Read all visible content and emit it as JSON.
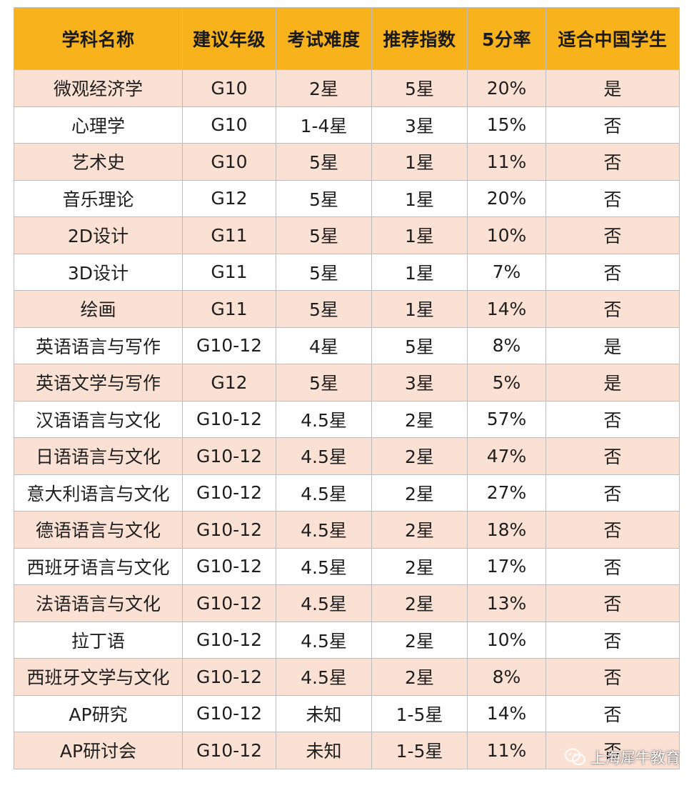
{
  "table": {
    "headers": [
      "学科名称",
      "建议年级",
      "考试难度",
      "推荐指数",
      "5分率",
      "适合中国学生"
    ],
    "rows": [
      [
        "微观经济学",
        "G10",
        "2星",
        "5星",
        "20%",
        "是"
      ],
      [
        "心理学",
        "G10",
        "1-4星",
        "3星",
        "15%",
        "否"
      ],
      [
        "艺术史",
        "G10",
        "5星",
        "1星",
        "11%",
        "否"
      ],
      [
        "音乐理论",
        "G12",
        "5星",
        "1星",
        "20%",
        "否"
      ],
      [
        "2D设计",
        "G11",
        "5星",
        "1星",
        "10%",
        "否"
      ],
      [
        "3D设计",
        "G11",
        "5星",
        "1星",
        "7%",
        "否"
      ],
      [
        "绘画",
        "G11",
        "5星",
        "1星",
        "14%",
        "否"
      ],
      [
        "英语语言与写作",
        "G10-12",
        "4星",
        "5星",
        "8%",
        "是"
      ],
      [
        "英语文学与写作",
        "G12",
        "5星",
        "3星",
        "5%",
        "是"
      ],
      [
        "汉语语言与文化",
        "G10-12",
        "4.5星",
        "2星",
        "57%",
        "否"
      ],
      [
        "日语语言与文化",
        "G10-12",
        "4.5星",
        "2星",
        "47%",
        "否"
      ],
      [
        "意大利语言与文化",
        "G10-12",
        "4.5星",
        "2星",
        "27%",
        "否"
      ],
      [
        "德语语言与文化",
        "G10-12",
        "4.5星",
        "2星",
        "18%",
        "否"
      ],
      [
        "西班牙语言与文化",
        "G10-12",
        "4.5星",
        "2星",
        "17%",
        "否"
      ],
      [
        "法语语言与文化",
        "G10-12",
        "4.5星",
        "2星",
        "13%",
        "否"
      ],
      [
        "拉丁语",
        "G10-12",
        "4.5星",
        "2星",
        "10%",
        "否"
      ],
      [
        "西班牙文学与文化",
        "G10-12",
        "4.5星",
        "2星",
        "8%",
        "否"
      ],
      [
        "AP研究",
        "G10-12",
        "未知",
        "1-5星",
        "14%",
        "否"
      ],
      [
        "AP研讨会",
        "G10-12",
        "未知",
        "1-5星",
        "11%",
        "否"
      ]
    ]
  },
  "watermark": {
    "text": "上海犀牛教育",
    "icon": "wechat-icon"
  },
  "colors": {
    "header_bg": "#f7b21c",
    "row_tint": "#fbe0d4",
    "row_plain": "#ffffff",
    "border": "#bdbdbd"
  }
}
